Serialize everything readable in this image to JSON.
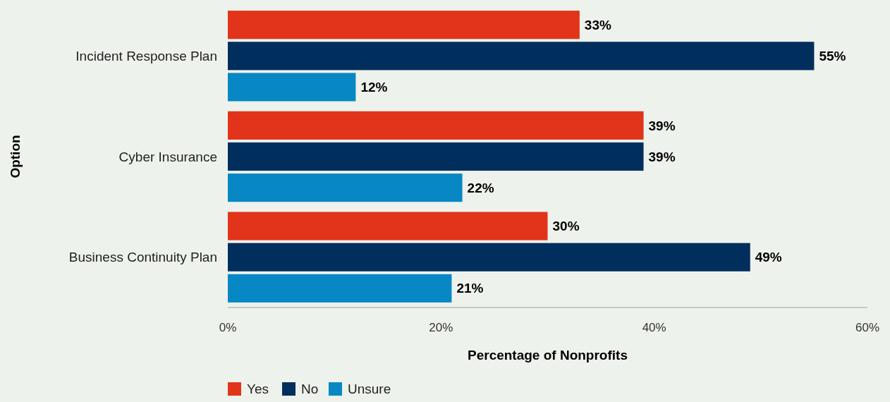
{
  "chart_data": {
    "type": "bar",
    "orientation": "horizontal",
    "xlabel": "Percentage of Nonprofits",
    "ylabel": "Option",
    "categories": [
      "Incident Response Plan",
      "Cyber Insurance",
      "Business Continuity Plan"
    ],
    "series": [
      {
        "name": "Yes",
        "color": "#e1341a",
        "values": [
          33,
          39,
          30
        ],
        "value_labels": [
          "33%",
          "39%",
          "30%"
        ]
      },
      {
        "name": "No",
        "color": "#002e5d",
        "values": [
          55,
          39,
          49
        ],
        "value_labels": [
          "55%",
          "39%",
          "49%"
        ]
      },
      {
        "name": "Unsure",
        "color": "#0788c4",
        "values": [
          12,
          22,
          21
        ],
        "value_labels": [
          "12%",
          "22%",
          "21%"
        ]
      }
    ],
    "xlim": [
      0,
      60
    ],
    "xticks": [
      {
        "value": 0,
        "label": "0%"
      },
      {
        "value": 20,
        "label": "20%"
      },
      {
        "value": 40,
        "label": "40%"
      },
      {
        "value": 60,
        "label": "60%"
      }
    ],
    "grid": false,
    "legend": "bottom"
  }
}
